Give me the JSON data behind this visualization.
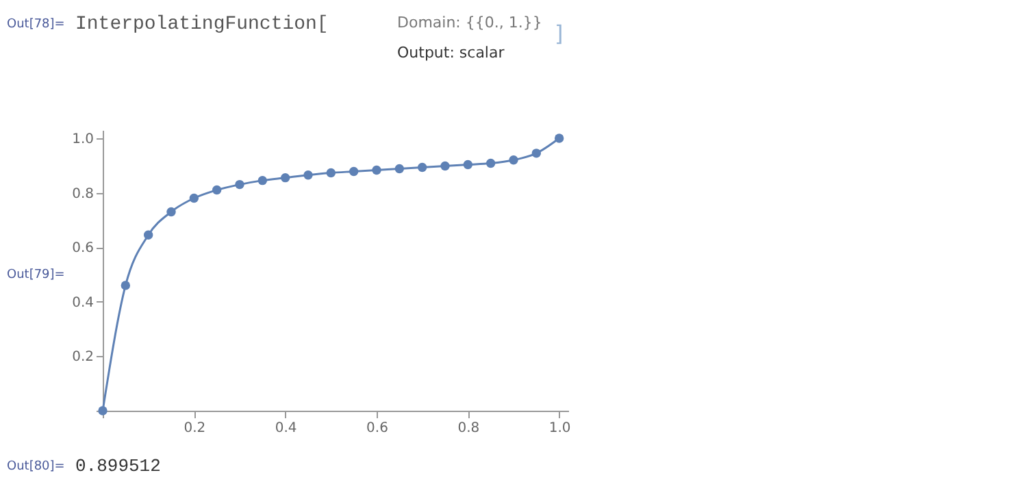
{
  "chart_data": {
    "type": "line",
    "x": [
      0,
      0.05,
      0.1,
      0.15,
      0.2,
      0.25,
      0.3,
      0.35,
      0.4,
      0.45,
      0.5,
      0.55,
      0.6,
      0.65,
      0.7,
      0.75,
      0.8,
      0.85,
      0.9,
      0.95,
      1.0
    ],
    "series": [
      {
        "color": "#5e81b5",
        "values": [
          0,
          0.46,
          0.645,
          0.73,
          0.78,
          0.81,
          0.83,
          0.845,
          0.855,
          0.865,
          0.873,
          0.878,
          0.883,
          0.888,
          0.893,
          0.898,
          0.903,
          0.908,
          0.92,
          0.945,
          1.0
        ]
      }
    ],
    "xlim": [
      0,
      1.02
    ],
    "ylim": [
      0,
      1.03
    ],
    "xticks": [
      {
        "value": 0,
        "label": null
      },
      0.2,
      0.4,
      0.6,
      0.8,
      {
        "value": 1.0,
        "label": "1.0"
      }
    ],
    "yticks": [
      {
        "value": 0,
        "label": null
      },
      0.2,
      0.4,
      0.6,
      0.8,
      {
        "value": 1.0,
        "label": "1.0"
      }
    ],
    "grid": false,
    "marker": "circle",
    "line_style": "solid",
    "annotations": [
      "Out[78]=",
      "InterpolatingFunction[",
      "Domain: {{0., 1.}}",
      "Output: scalar",
      "]",
      "Out[79]=",
      "Out[80]=",
      "0.899512"
    ]
  }
}
